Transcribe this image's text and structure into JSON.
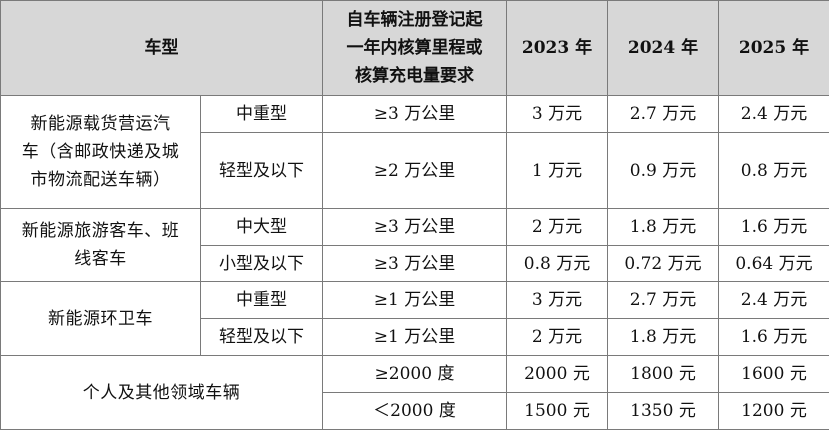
{
  "header": {
    "vehicle_type": "车型",
    "mileage_req_line1": "自车辆注册登记起",
    "mileage_req_line2": "一年内核算里程或",
    "mileage_req_line3": "核算充电量要求",
    "y2023": "2023 年",
    "y2024": "2024 年",
    "y2025": "2025 年"
  },
  "groups": [
    {
      "category_line1": "新能源载货营运汽",
      "category_line2": "车（含邮政快递及城",
      "category_line3": "市物流配送车辆）",
      "rows": [
        {
          "size": "中重型",
          "requirement": "≥3 万公里",
          "y2023": "3 万元",
          "y2024": "2.7 万元",
          "y2025": "2.4 万元"
        },
        {
          "size": "轻型及以下",
          "requirement": "≥2 万公里",
          "y2023": "1 万元",
          "y2024": "0.9 万元",
          "y2025": "0.8 万元"
        }
      ]
    },
    {
      "category_line1": "新能源旅游客车、班",
      "category_line2": "线客车",
      "rows": [
        {
          "size": "中大型",
          "requirement": "≥3 万公里",
          "y2023": "2 万元",
          "y2024": "1.8 万元",
          "y2025": "1.6 万元"
        },
        {
          "size": "小型及以下",
          "requirement": "≥3 万公里",
          "y2023": "0.8 万元",
          "y2024": "0.72 万元",
          "y2025": "0.64 万元"
        }
      ]
    },
    {
      "category_line1": "新能源环卫车",
      "rows": [
        {
          "size": "中重型",
          "requirement": "≥1 万公里",
          "y2023": "3 万元",
          "y2024": "2.7 万元",
          "y2025": "2.4 万元"
        },
        {
          "size": "轻型及以下",
          "requirement": "≥1 万公里",
          "y2023": "2 万元",
          "y2024": "1.8 万元",
          "y2025": "1.6 万元"
        }
      ]
    },
    {
      "category_line1": "个人及其他领域车辆",
      "rows": [
        {
          "requirement": "≥2000 度",
          "y2023": "2000 元",
          "y2024": "1800 元",
          "y2025": "1600 元"
        },
        {
          "requirement": "＜2000 度",
          "y2023": "1500 元",
          "y2024": "1350 元",
          "y2025": "1200 元"
        }
      ]
    }
  ]
}
